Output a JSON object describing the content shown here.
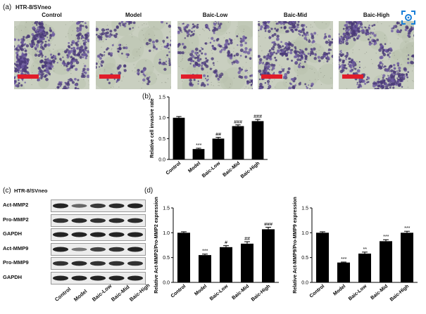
{
  "figure": {
    "panel_a": {
      "letter": "(a)",
      "cell_line": "HTR-8/SVneo",
      "groups": [
        "Control",
        "Model",
        "Baic-Low",
        "Baic-Mid",
        "Baic-High"
      ]
    },
    "panel_b": {
      "letter": "(b)"
    },
    "panel_c": {
      "letter": "(c)",
      "cell_line": "HTR-8/SVneo",
      "blots": [
        "Act-MMP2",
        "Pro-MMP2",
        "GAPDH",
        "Act-MMP9",
        "Pro-MMP9",
        "GAPDH"
      ],
      "lanes": [
        "Control",
        "Model",
        "Baic-Low",
        "Baic-Mid",
        "Baic-High"
      ]
    },
    "panel_d": {
      "letter": "(d)"
    },
    "accent_color": "#e11d2a",
    "icon_color": "#1a7fd8"
  },
  "chart_data": [
    {
      "type": "bar",
      "panel": "(b)",
      "categories": [
        "Control",
        "Model",
        "Baic-Low",
        "Baic-Mid",
        "Baic-High"
      ],
      "values": [
        1.0,
        0.25,
        0.5,
        0.8,
        0.92
      ],
      "errors": [
        0.03,
        0.02,
        0.03,
        0.03,
        0.04
      ],
      "annotations": [
        "",
        "***",
        "##",
        "###",
        "###"
      ],
      "ylabel": "Relative cell invasive rate",
      "ylim": [
        0,
        1.5
      ],
      "yticks": [
        "0.0",
        "0.5",
        "1.0",
        "1.5"
      ]
    },
    {
      "type": "bar",
      "panel": "(d)-left",
      "categories": [
        "Control",
        "Model",
        "Baic-Low",
        "Baic-Mid",
        "Baic-High"
      ],
      "values": [
        1.0,
        0.55,
        0.71,
        0.78,
        1.07
      ],
      "errors": [
        0.02,
        0.02,
        0.03,
        0.04,
        0.04
      ],
      "annotations": [
        "",
        "***",
        "#",
        "##",
        "###"
      ],
      "ylabel": "Relative Act-MMP2/Pro-MMP2 expression",
      "ylim": [
        0,
        1.5
      ],
      "yticks": [
        "0.0",
        "0.5",
        "1.0",
        "1.5"
      ]
    },
    {
      "type": "bar",
      "panel": "(d)-right",
      "categories": [
        "Control",
        "Model",
        "Baic-Low",
        "Baic-Mid",
        "Baic-High"
      ],
      "values": [
        1.0,
        0.4,
        0.58,
        0.83,
        1.0
      ],
      "errors": [
        0.02,
        0.01,
        0.03,
        0.03,
        0.03
      ],
      "annotations": [
        "",
        "***",
        "**",
        "***",
        "***"
      ],
      "ylabel": "Relative Act-MMP9/Pro-MMP9 expression",
      "ylim": [
        0,
        1.5
      ],
      "yticks": [
        "0.0",
        "0.5",
        "1.0",
        "1.5"
      ]
    }
  ]
}
